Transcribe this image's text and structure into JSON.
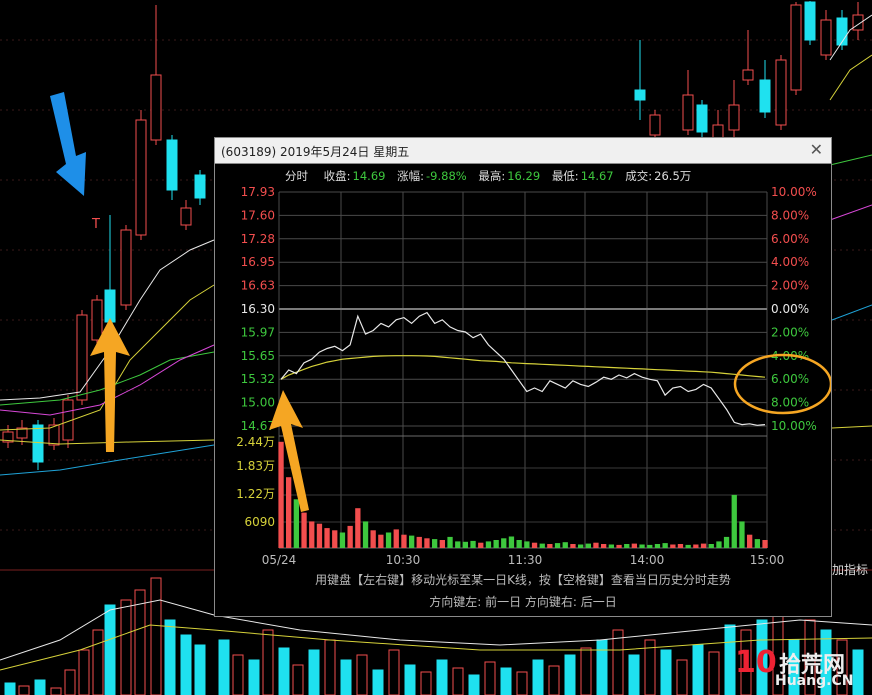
{
  "popup": {
    "title": "(603189) 2019年5月24日 星期五",
    "close_glyph": "✕"
  },
  "info": {
    "mode": "分时",
    "close_label": "收盘:",
    "close_value": "14.69",
    "change_label": "涨幅:",
    "change_value": "-9.88%",
    "high_label": "最高:",
    "high_value": "16.29",
    "low_label": "最低:",
    "low_value": "14.67",
    "volume_label": "成交:",
    "volume_value": "26.5万"
  },
  "price_ticks": [
    "17.93",
    "17.60",
    "17.28",
    "16.95",
    "16.63",
    "16.30",
    "15.97",
    "15.65",
    "15.32",
    "15.00",
    "14.67"
  ],
  "pct_ticks": [
    "10.00%",
    "8.00%",
    "6.00%",
    "4.00%",
    "2.00%",
    "0.00%",
    "2.00%",
    "4.00%",
    "6.00%",
    "8.00%",
    "10.00%"
  ],
  "volume_ticks": [
    "2.44万",
    "1.83万",
    "1.22万",
    "6090"
  ],
  "time_ticks": [
    "05/24",
    "10:30",
    "11:30",
    "14:00",
    "15:00"
  ],
  "hints": {
    "line1": "用键盘【左右键】移动光标至某一日K线，按【空格键】查看当日历史分时走势",
    "line2": "方向键左: 前一日    方向键右: 后一日"
  },
  "right_label": "加指标",
  "watermark": {
    "big": "10",
    "cn": "拾荒网",
    "en": "Huang.CN"
  },
  "colors": {
    "up": "#f24e4e",
    "down": "#3ec83e",
    "cyan": "#1fe1ef",
    "avg": "#d6d23a",
    "price": "#e8e8e8",
    "arrow_orange": "#f5a623",
    "arrow_blue": "#1e8fe8"
  },
  "chart_data": {
    "type": "line",
    "prev_close": 16.3,
    "ylim": [
      14.67,
      17.93
    ],
    "price": [
      15.32,
      15.45,
      15.4,
      15.55,
      15.6,
      15.7,
      15.75,
      15.78,
      15.72,
      15.8,
      16.2,
      15.95,
      16.0,
      16.1,
      16.05,
      16.15,
      16.18,
      16.1,
      16.2,
      16.25,
      16.1,
      16.15,
      16.05,
      16.0,
      15.98,
      15.9,
      15.95,
      15.8,
      15.7,
      15.6,
      15.45,
      15.3,
      15.15,
      15.2,
      15.15,
      15.3,
      15.25,
      15.2,
      15.3,
      15.25,
      15.22,
      15.28,
      15.35,
      15.32,
      15.38,
      15.34,
      15.4,
      15.35,
      15.32,
      15.3,
      15.1,
      15.2,
      15.22,
      15.15,
      15.18,
      15.25,
      15.2,
      15.05,
      14.9,
      14.72,
      14.69,
      14.7,
      14.68,
      14.69
    ],
    "avg": [
      15.32,
      15.38,
      15.42,
      15.46,
      15.5,
      15.53,
      15.56,
      15.58,
      15.6,
      15.61,
      15.62,
      15.63,
      15.64,
      15.645,
      15.648,
      15.65,
      15.65,
      15.65,
      15.648,
      15.645,
      15.64,
      15.63,
      15.62,
      15.61,
      15.6,
      15.59,
      15.58,
      15.575,
      15.57,
      15.56,
      15.55,
      15.545,
      15.54,
      15.535,
      15.53,
      15.525,
      15.52,
      15.515,
      15.51,
      15.505,
      15.5,
      15.495,
      15.49,
      15.485,
      15.48,
      15.475,
      15.47,
      15.465,
      15.46,
      15.455,
      15.45,
      15.445,
      15.44,
      15.435,
      15.43,
      15.425,
      15.42,
      15.41,
      15.4,
      15.39,
      15.38,
      15.37,
      15.36,
      15.35
    ],
    "volume": [
      24000,
      16000,
      11000,
      8000,
      6000,
      5500,
      4500,
      4000,
      3500,
      5000,
      9000,
      6000,
      4000,
      3000,
      3500,
      4200,
      3000,
      2800,
      2500,
      2200,
      2000,
      1800,
      2500,
      1500,
      1400,
      1600,
      1200,
      1500,
      1800,
      2200,
      2600,
      1800,
      1500,
      1200,
      1000,
      900,
      1100,
      1300,
      900,
      800,
      1000,
      1200,
      900,
      800,
      700,
      900,
      1000,
      800,
      700,
      900,
      1100,
      800,
      900,
      700,
      800,
      1000,
      900,
      1500,
      2500,
      12000,
      6000,
      3000,
      2000,
      1800
    ],
    "vol_max": 24400
  }
}
